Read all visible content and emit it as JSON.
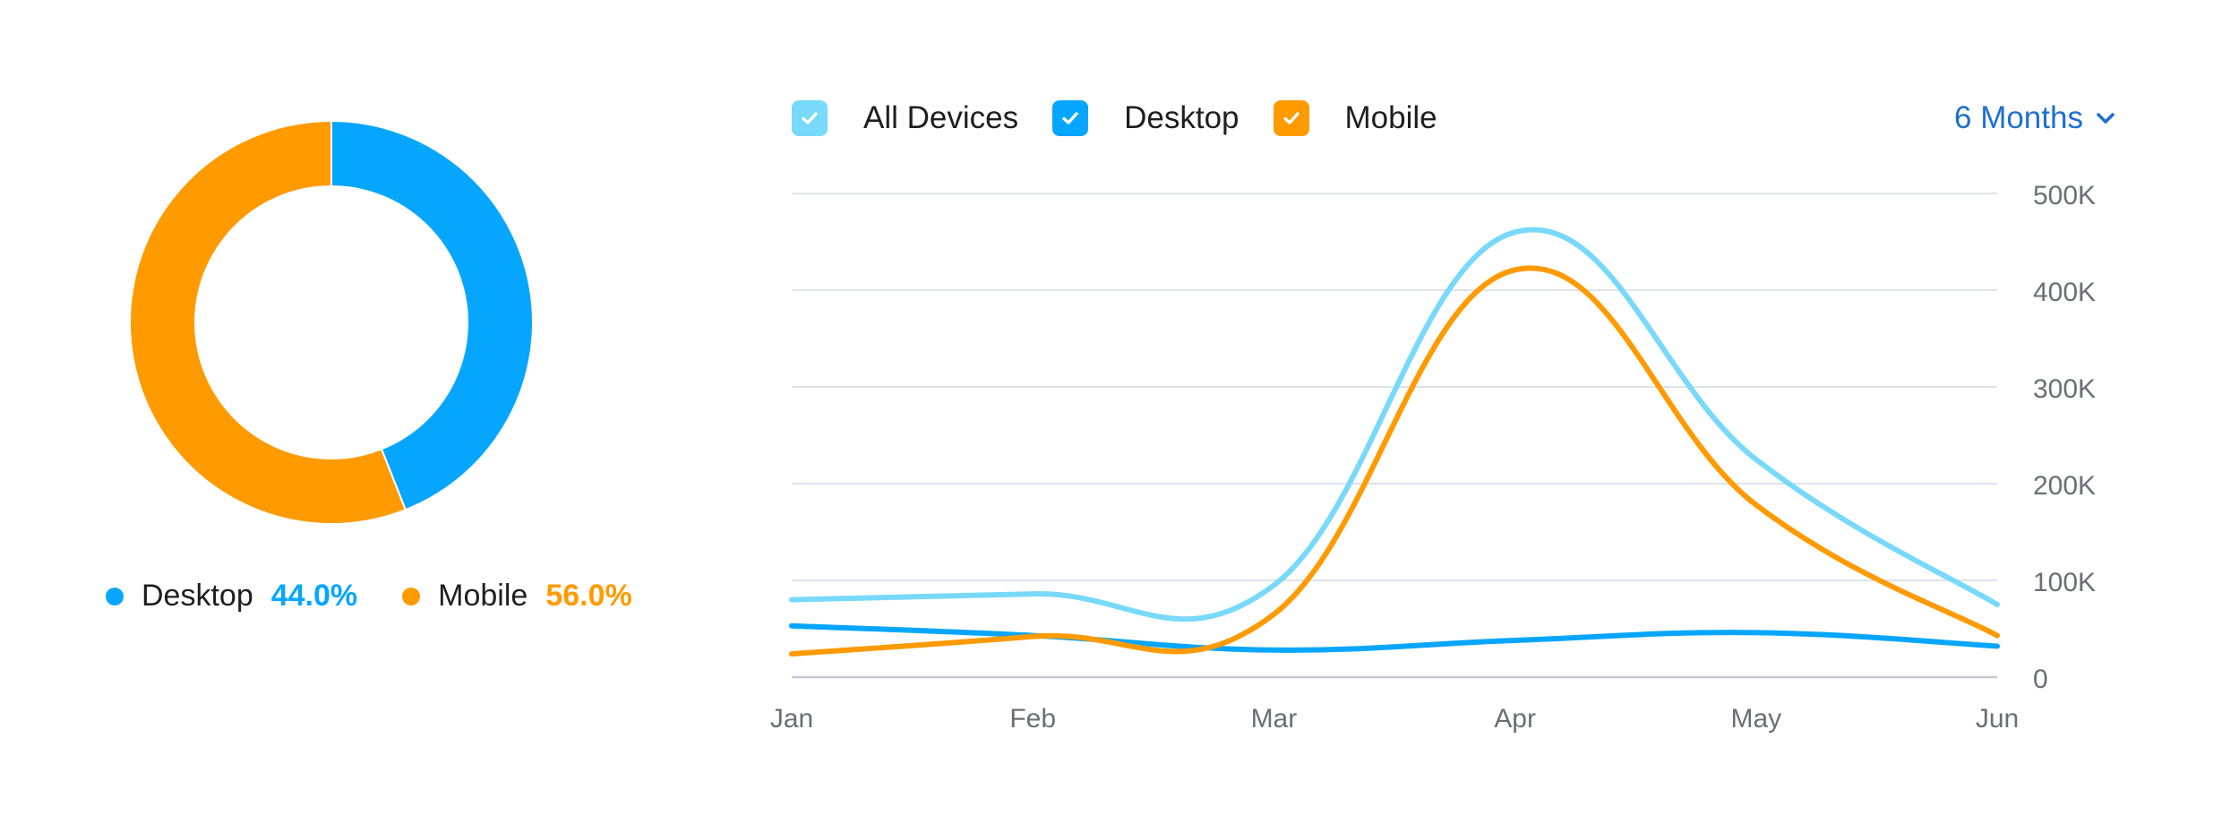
{
  "donut": {
    "legend": [
      {
        "name": "Desktop",
        "value_label": "44.0%",
        "color": "#06a6ff"
      },
      {
        "name": "Mobile",
        "value_label": "56.0%",
        "color": "#ff9a00"
      }
    ]
  },
  "legend": {
    "items": [
      {
        "label": "All Devices",
        "color": "#78d9fa",
        "checked": true,
        "icon": "check-icon"
      },
      {
        "label": "Desktop",
        "color": "#06a6ff",
        "checked": true,
        "icon": "check-icon"
      },
      {
        "label": "Mobile",
        "color": "#ff9a00",
        "checked": true,
        "icon": "check-icon"
      }
    ]
  },
  "period": {
    "label": "6 Months",
    "icon": "chevron-down-icon",
    "color": "#1f6fd1"
  },
  "chart_data": [
    {
      "type": "pie",
      "donut": true,
      "categories": [
        "Desktop",
        "Mobile"
      ],
      "values": [
        44.0,
        56.0
      ],
      "colors": [
        "#06a6ff",
        "#ff9a00"
      ]
    },
    {
      "type": "line",
      "categories": [
        "Jan",
        "Feb",
        "Mar",
        "Apr",
        "May",
        "Jun"
      ],
      "series": [
        {
          "name": "All Devices",
          "color": "#78d9fa",
          "values": [
            80000,
            86000,
            95000,
            460000,
            225000,
            75000
          ]
        },
        {
          "name": "Desktop",
          "color": "#06a6ff",
          "values": [
            53000,
            43000,
            28000,
            38000,
            46000,
            32000
          ]
        },
        {
          "name": "Mobile",
          "color": "#ff9a00",
          "values": [
            24000,
            42000,
            65000,
            421000,
            178000,
            43000
          ]
        }
      ],
      "yticks": [
        "0",
        "100K",
        "200K",
        "300K",
        "400K",
        "500K"
      ],
      "ylim": [
        0,
        500000
      ],
      "grid": true,
      "y_axis_position": "right",
      "legend_position": "top"
    }
  ]
}
